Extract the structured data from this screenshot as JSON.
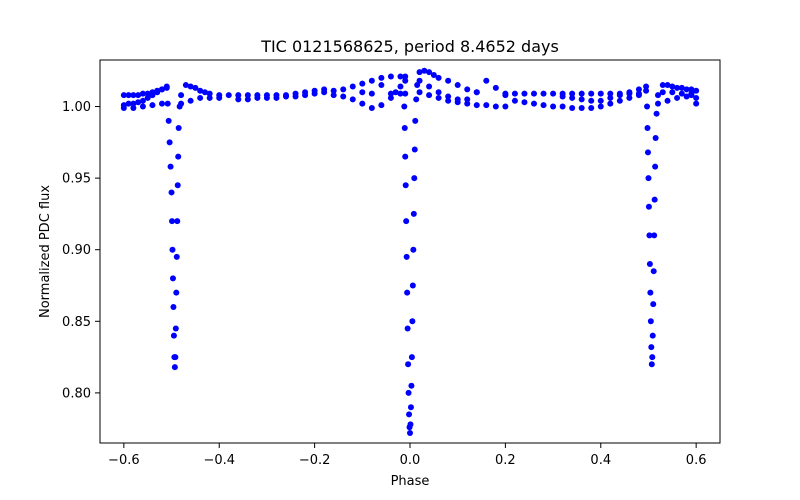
{
  "chart_data": {
    "type": "scatter",
    "title": "TIC 0121568625, period 8.4652 days",
    "xlabel": "Phase",
    "ylabel": "Normalized PDC flux",
    "xlim": [
      -0.65,
      0.65
    ],
    "ylim": [
      0.765,
      1.0325
    ],
    "xticks": [
      -0.6,
      -0.4,
      -0.2,
      0.0,
      0.2,
      0.4,
      0.6
    ],
    "xtick_labels": [
      "−0.6",
      "−0.4",
      "−0.2",
      "0.0",
      "0.2",
      "0.4",
      "0.6"
    ],
    "yticks": [
      0.8,
      0.85,
      0.9,
      0.95,
      1.0
    ],
    "ytick_labels": [
      "0.80",
      "0.85",
      "0.90",
      "0.95",
      "1.00"
    ],
    "grid": false,
    "marker_color": "#0000ff",
    "series": [
      {
        "points": [
          [
            -0.6,
            1.008
          ],
          [
            -0.59,
            1.008
          ],
          [
            -0.58,
            1.008
          ],
          [
            -0.57,
            1.008
          ],
          [
            -0.56,
            1.009
          ],
          [
            -0.55,
            1.009
          ],
          [
            -0.54,
            1.01
          ],
          [
            -0.53,
            1.011
          ],
          [
            -0.52,
            1.012
          ],
          [
            -0.51,
            1.013
          ],
          [
            -0.6,
            1.001
          ],
          [
            -0.59,
            1.002
          ],
          [
            -0.58,
            1.002
          ],
          [
            -0.57,
            1.003
          ],
          [
            -0.56,
            1.004
          ],
          [
            -0.55,
            1.006
          ],
          [
            -0.54,
            1.008
          ],
          [
            -0.53,
            1.01
          ],
          [
            -0.52,
            1.012
          ],
          [
            -0.51,
            1.014
          ],
          [
            -0.6,
            0.999
          ],
          [
            -0.58,
            0.999
          ],
          [
            -0.56,
            1.0
          ],
          [
            -0.54,
            1.001
          ],
          [
            -0.52,
            1.002
          ],
          [
            -0.508,
            1.002
          ],
          [
            -0.506,
            0.99
          ],
          [
            -0.504,
            0.975
          ],
          [
            -0.502,
            0.958
          ],
          [
            -0.5,
            0.94
          ],
          [
            -0.499,
            0.92
          ],
          [
            -0.498,
            0.9
          ],
          [
            -0.497,
            0.88
          ],
          [
            -0.496,
            0.86
          ],
          [
            -0.495,
            0.84
          ],
          [
            -0.494,
            0.825
          ],
          [
            -0.493,
            0.818
          ],
          [
            -0.492,
            0.825
          ],
          [
            -0.491,
            0.845
          ],
          [
            -0.49,
            0.87
          ],
          [
            -0.489,
            0.895
          ],
          [
            -0.488,
            0.92
          ],
          [
            -0.487,
            0.945
          ],
          [
            -0.486,
            0.965
          ],
          [
            -0.485,
            0.985
          ],
          [
            -0.483,
            1.0
          ],
          [
            -0.48,
            1.008
          ],
          [
            -0.47,
            1.015
          ],
          [
            -0.46,
            1.014
          ],
          [
            -0.45,
            1.013
          ],
          [
            -0.44,
            1.011
          ],
          [
            -0.43,
            1.01
          ],
          [
            -0.42,
            1.009
          ],
          [
            -0.4,
            1.008
          ],
          [
            -0.38,
            1.008
          ],
          [
            -0.48,
            1.002
          ],
          [
            -0.46,
            1.004
          ],
          [
            -0.44,
            1.006
          ],
          [
            -0.42,
            1.006
          ],
          [
            -0.4,
            1.006
          ],
          [
            -0.36,
            1.008
          ],
          [
            -0.34,
            1.008
          ],
          [
            -0.32,
            1.008
          ],
          [
            -0.3,
            1.008
          ],
          [
            -0.28,
            1.008
          ],
          [
            -0.36,
            1.005
          ],
          [
            -0.34,
            1.005
          ],
          [
            -0.32,
            1.006
          ],
          [
            -0.3,
            1.006
          ],
          [
            -0.28,
            1.006
          ],
          [
            -0.26,
            1.007
          ],
          [
            -0.24,
            1.007
          ],
          [
            -0.22,
            1.008
          ],
          [
            -0.2,
            1.009
          ],
          [
            -0.18,
            1.01
          ],
          [
            -0.26,
            1.008
          ],
          [
            -0.24,
            1.009
          ],
          [
            -0.22,
            1.01
          ],
          [
            -0.2,
            1.011
          ],
          [
            -0.18,
            1.012
          ],
          [
            -0.16,
            1.011
          ],
          [
            -0.14,
            1.012
          ],
          [
            -0.12,
            1.014
          ],
          [
            -0.1,
            1.016
          ],
          [
            -0.08,
            1.018
          ],
          [
            -0.16,
            1.008
          ],
          [
            -0.14,
            1.007
          ],
          [
            -0.12,
            1.005
          ],
          [
            -0.1,
            1.002
          ],
          [
            -0.08,
            0.999
          ],
          [
            -0.06,
            1.001
          ],
          [
            -0.04,
            1.006
          ],
          [
            -0.03,
            1.01
          ],
          [
            -0.02,
            1.014
          ],
          [
            -0.01,
            1.018
          ],
          [
            -0.06,
            1.02
          ],
          [
            -0.04,
            1.021
          ],
          [
            -0.02,
            1.021
          ],
          [
            -0.01,
            1.021
          ],
          [
            -0.06,
            1.015
          ],
          [
            -0.04,
            1.009
          ],
          [
            -0.02,
            1.009
          ],
          [
            -0.01,
            1.009
          ],
          [
            -0.1,
            1.01
          ],
          [
            -0.08,
            1.009
          ],
          [
            -0.012,
            1.0
          ],
          [
            -0.011,
            0.985
          ],
          [
            -0.01,
            0.965
          ],
          [
            -0.009,
            0.945
          ],
          [
            -0.008,
            0.92
          ],
          [
            -0.007,
            0.895
          ],
          [
            -0.006,
            0.87
          ],
          [
            -0.005,
            0.845
          ],
          [
            -0.004,
            0.82
          ],
          [
            -0.003,
            0.8
          ],
          [
            -0.002,
            0.785
          ],
          [
            -0.001,
            0.776
          ],
          [
            0.0,
            0.772
          ],
          [
            0.001,
            0.778
          ],
          [
            0.002,
            0.79
          ],
          [
            0.003,
            0.805
          ],
          [
            0.004,
            0.825
          ],
          [
            0.005,
            0.85
          ],
          [
            0.006,
            0.875
          ],
          [
            0.007,
            0.9
          ],
          [
            0.008,
            0.925
          ],
          [
            0.009,
            0.95
          ],
          [
            0.01,
            0.97
          ],
          [
            0.011,
            0.99
          ],
          [
            0.013,
            1.005
          ],
          [
            0.015,
            1.015
          ],
          [
            0.02,
            1.024
          ],
          [
            0.03,
            1.025
          ],
          [
            0.04,
            1.024
          ],
          [
            0.05,
            1.022
          ],
          [
            0.06,
            1.02
          ],
          [
            0.08,
            1.018
          ],
          [
            0.1,
            1.015
          ],
          [
            0.12,
            1.012
          ],
          [
            0.14,
            1.01
          ],
          [
            0.02,
            1.018
          ],
          [
            0.04,
            1.014
          ],
          [
            0.06,
            1.01
          ],
          [
            0.08,
            1.007
          ],
          [
            0.1,
            1.005
          ],
          [
            0.12,
            1.005
          ],
          [
            0.14,
            1.01
          ],
          [
            0.16,
            1.018
          ],
          [
            0.18,
            1.013
          ],
          [
            0.2,
            1.008
          ],
          [
            0.02,
            1.01
          ],
          [
            0.04,
            1.008
          ],
          [
            0.06,
            1.006
          ],
          [
            0.08,
            1.004
          ],
          [
            0.1,
            1.003
          ],
          [
            0.12,
            1.002
          ],
          [
            0.14,
            1.001
          ],
          [
            0.16,
            1.001
          ],
          [
            0.18,
            1.0
          ],
          [
            0.2,
            1.0
          ],
          [
            0.2,
            1.009
          ],
          [
            0.22,
            1.009
          ],
          [
            0.24,
            1.009
          ],
          [
            0.26,
            1.009
          ],
          [
            0.28,
            1.009
          ],
          [
            0.22,
            1.004
          ],
          [
            0.24,
            1.003
          ],
          [
            0.26,
            1.002
          ],
          [
            0.28,
            1.001
          ],
          [
            0.3,
            1.0
          ],
          [
            0.3,
            1.009
          ],
          [
            0.32,
            1.009
          ],
          [
            0.34,
            1.009
          ],
          [
            0.36,
            1.009
          ],
          [
            0.38,
            1.009
          ],
          [
            0.32,
            1.0
          ],
          [
            0.34,
            0.999
          ],
          [
            0.36,
            0.999
          ],
          [
            0.38,
            0.999
          ],
          [
            0.4,
            1.0
          ],
          [
            0.32,
            1.007
          ],
          [
            0.34,
            1.006
          ],
          [
            0.36,
            1.005
          ],
          [
            0.38,
            1.004
          ],
          [
            0.4,
            1.004
          ],
          [
            0.4,
            1.009
          ],
          [
            0.42,
            1.009
          ],
          [
            0.44,
            1.009
          ],
          [
            0.46,
            1.009
          ],
          [
            0.48,
            1.009
          ],
          [
            0.42,
            1.002
          ],
          [
            0.44,
            1.004
          ],
          [
            0.46,
            1.006
          ],
          [
            0.48,
            1.008
          ],
          [
            0.495,
            1.011
          ],
          [
            0.42,
            1.006
          ],
          [
            0.44,
            1.008
          ],
          [
            0.46,
            1.01
          ],
          [
            0.48,
            1.012
          ],
          [
            0.495,
            1.014
          ],
          [
            0.497,
            1.0
          ],
          [
            0.498,
            0.985
          ],
          [
            0.499,
            0.968
          ],
          [
            0.5,
            0.95
          ],
          [
            0.501,
            0.93
          ],
          [
            0.502,
            0.91
          ],
          [
            0.503,
            0.89
          ],
          [
            0.504,
            0.87
          ],
          [
            0.505,
            0.85
          ],
          [
            0.506,
            0.832
          ],
          [
            0.507,
            0.82
          ],
          [
            0.508,
            0.825
          ],
          [
            0.509,
            0.84
          ],
          [
            0.51,
            0.862
          ],
          [
            0.511,
            0.885
          ],
          [
            0.512,
            0.91
          ],
          [
            0.513,
            0.935
          ],
          [
            0.514,
            0.958
          ],
          [
            0.515,
            0.978
          ],
          [
            0.517,
            0.995
          ],
          [
            0.52,
            1.008
          ],
          [
            0.53,
            1.015
          ],
          [
            0.54,
            1.015
          ],
          [
            0.55,
            1.014
          ],
          [
            0.56,
            1.013
          ],
          [
            0.57,
            1.013
          ],
          [
            0.58,
            1.012
          ],
          [
            0.59,
            1.012
          ],
          [
            0.6,
            1.011
          ],
          [
            0.6,
            1.006
          ],
          [
            0.52,
            1.002
          ],
          [
            0.54,
            1.004
          ],
          [
            0.56,
            1.006
          ],
          [
            0.58,
            1.007
          ],
          [
            0.59,
            1.008
          ],
          [
            0.53,
            1.01
          ],
          [
            0.55,
            1.01
          ],
          [
            0.57,
            1.009
          ],
          [
            0.59,
            1.009
          ],
          [
            0.6,
            1.002
          ]
        ]
      }
    ]
  }
}
